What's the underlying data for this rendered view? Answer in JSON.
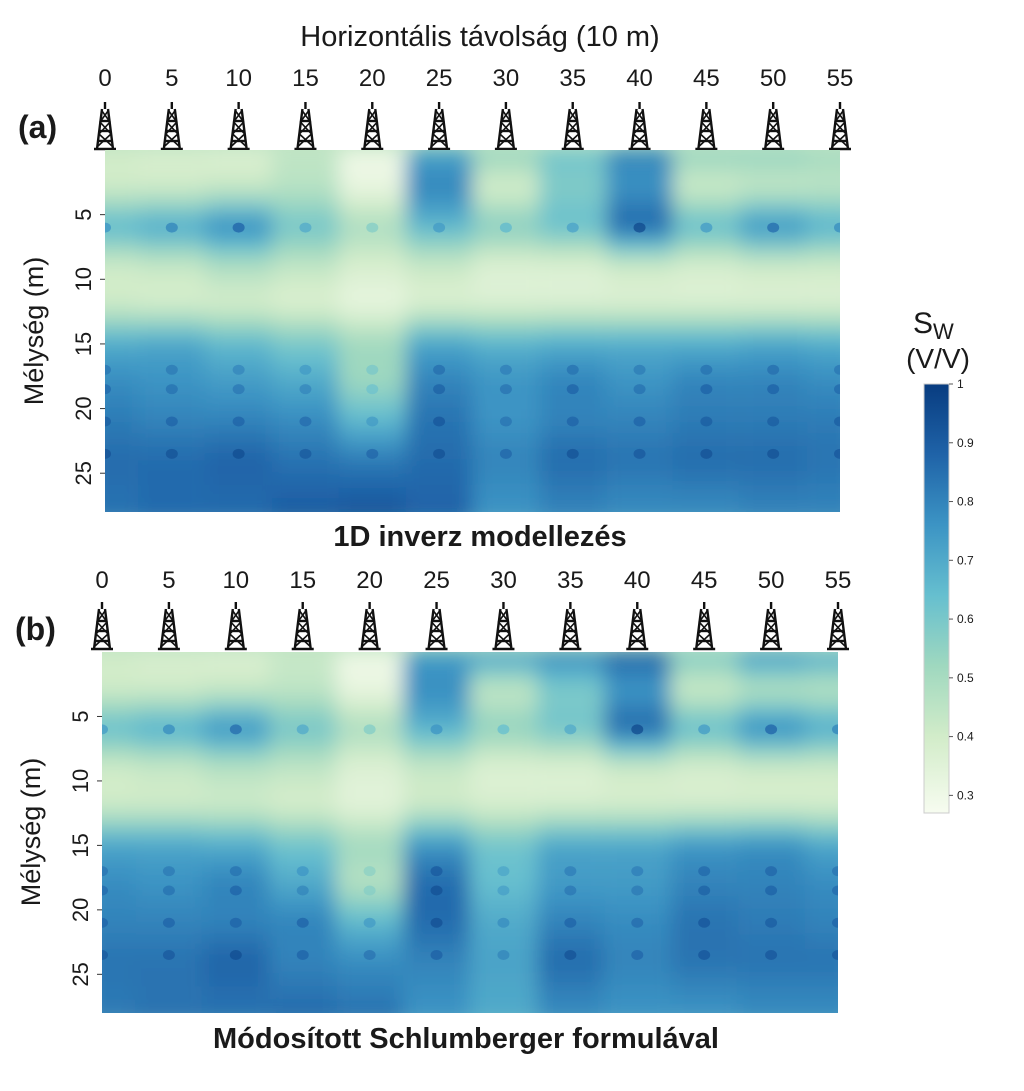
{
  "chart_data": {
    "type": "heatmap",
    "xlabel": "Horizontális távolság (10 m)",
    "ylabel": "Mélység (m)",
    "x_ticks": [
      0,
      5,
      10,
      15,
      20,
      25,
      30,
      35,
      40,
      45,
      50,
      55
    ],
    "y_ticks": [
      5,
      10,
      15,
      20,
      25
    ],
    "xlim": [
      0,
      55
    ],
    "ylim": [
      0,
      28
    ],
    "well_positions": [
      0,
      5,
      10,
      15,
      20,
      25,
      30,
      35,
      40,
      45,
      50,
      55
    ],
    "colorbar": {
      "title_main": "S",
      "title_sub": "W",
      "unit": "(V/V)",
      "range": [
        0.27,
        1.0
      ],
      "ticks": [
        0.3,
        0.4,
        0.5,
        0.6,
        0.7,
        0.8,
        0.9,
        1.0
      ],
      "tick_labels": [
        "0.3",
        "0.4",
        "0.5",
        "0.6",
        "0.7",
        "0.8",
        "0.9",
        "1"
      ],
      "stops": [
        {
          "value": 0.27,
          "color": "#f7fcf0"
        },
        {
          "value": 0.4,
          "color": "#d2ecc9"
        },
        {
          "value": 0.52,
          "color": "#9fd8bf"
        },
        {
          "value": 0.64,
          "color": "#66bfcf"
        },
        {
          "value": 0.76,
          "color": "#3c94c4"
        },
        {
          "value": 0.88,
          "color": "#1f63a8"
        },
        {
          "value": 1.0,
          "color": "#083c80"
        }
      ]
    },
    "panels": [
      {
        "label": "(a)",
        "title": "1D inverz modellezés",
        "depth_profiles": [
          {
            "x": 0,
            "depth": [
              0,
              3,
              6,
              9,
              12,
              15,
              18,
              21,
              24,
              28
            ],
            "sw": [
              0.4,
              0.4,
              0.68,
              0.4,
              0.4,
              0.7,
              0.78,
              0.82,
              0.86,
              0.84
            ]
          },
          {
            "x": 5,
            "depth": [
              0,
              3,
              6,
              9,
              12,
              15,
              18,
              21,
              24,
              28
            ],
            "sw": [
              0.38,
              0.4,
              0.72,
              0.42,
              0.38,
              0.72,
              0.76,
              0.8,
              0.86,
              0.86
            ]
          },
          {
            "x": 10,
            "depth": [
              0,
              3,
              6,
              9,
              12,
              15,
              18,
              21,
              24,
              28
            ],
            "sw": [
              0.36,
              0.42,
              0.8,
              0.48,
              0.38,
              0.66,
              0.74,
              0.8,
              0.88,
              0.86
            ]
          },
          {
            "x": 15,
            "depth": [
              0,
              3,
              6,
              9,
              12,
              15,
              18,
              21,
              24,
              28
            ],
            "sw": [
              0.44,
              0.46,
              0.62,
              0.44,
              0.36,
              0.6,
              0.7,
              0.78,
              0.84,
              0.9
            ]
          },
          {
            "x": 20,
            "depth": [
              0,
              3,
              6,
              9,
              12,
              15,
              18,
              21,
              24,
              28
            ],
            "sw": [
              0.3,
              0.32,
              0.5,
              0.38,
              0.32,
              0.52,
              0.52,
              0.66,
              0.82,
              0.92
            ]
          },
          {
            "x": 25,
            "depth": [
              0,
              3,
              6,
              9,
              12,
              15,
              18,
              21,
              24,
              28
            ],
            "sw": [
              0.72,
              0.8,
              0.66,
              0.42,
              0.36,
              0.72,
              0.8,
              0.84,
              0.86,
              0.88
            ]
          },
          {
            "x": 30,
            "depth": [
              0,
              3,
              6,
              9,
              12,
              15,
              18,
              21,
              24,
              28
            ],
            "sw": [
              0.56,
              0.38,
              0.58,
              0.36,
              0.36,
              0.68,
              0.76,
              0.76,
              0.8,
              0.76
            ]
          },
          {
            "x": 35,
            "depth": [
              0,
              3,
              6,
              9,
              12,
              15,
              18,
              21,
              24,
              28
            ],
            "sw": [
              0.62,
              0.58,
              0.64,
              0.36,
              0.36,
              0.7,
              0.8,
              0.8,
              0.86,
              0.8
            ]
          },
          {
            "x": 40,
            "depth": [
              0,
              3,
              6,
              9,
              12,
              15,
              18,
              21,
              24,
              28
            ],
            "sw": [
              0.8,
              0.76,
              0.88,
              0.4,
              0.36,
              0.7,
              0.76,
              0.8,
              0.84,
              0.78
            ]
          },
          {
            "x": 45,
            "depth": [
              0,
              3,
              6,
              9,
              12,
              15,
              18,
              21,
              24,
              28
            ],
            "sw": [
              0.56,
              0.4,
              0.66,
              0.38,
              0.36,
              0.7,
              0.8,
              0.82,
              0.86,
              0.78
            ]
          },
          {
            "x": 50,
            "depth": [
              0,
              3,
              6,
              9,
              12,
              15,
              18,
              21,
              24,
              28
            ],
            "sw": [
              0.56,
              0.42,
              0.78,
              0.4,
              0.36,
              0.72,
              0.8,
              0.82,
              0.86,
              0.8
            ]
          },
          {
            "x": 55,
            "depth": [
              0,
              3,
              6,
              9,
              12,
              15,
              18,
              21,
              24,
              28
            ],
            "sw": [
              0.52,
              0.44,
              0.7,
              0.4,
              0.36,
              0.7,
              0.78,
              0.82,
              0.84,
              0.8
            ]
          }
        ]
      },
      {
        "label": "(b)",
        "title": "Módosított  Schlumberger formulával",
        "depth_profiles": [
          {
            "x": 0,
            "depth": [
              0,
              3,
              6,
              9,
              12,
              15,
              18,
              21,
              24,
              28
            ],
            "sw": [
              0.4,
              0.4,
              0.66,
              0.4,
              0.4,
              0.72,
              0.78,
              0.8,
              0.84,
              0.82
            ]
          },
          {
            "x": 5,
            "depth": [
              0,
              3,
              6,
              9,
              12,
              15,
              18,
              21,
              24,
              28
            ],
            "sw": [
              0.38,
              0.4,
              0.7,
              0.42,
              0.4,
              0.72,
              0.76,
              0.8,
              0.84,
              0.84
            ]
          },
          {
            "x": 10,
            "depth": [
              0,
              3,
              6,
              9,
              12,
              15,
              18,
              21,
              24,
              28
            ],
            "sw": [
              0.36,
              0.42,
              0.78,
              0.46,
              0.4,
              0.7,
              0.8,
              0.8,
              0.88,
              0.84
            ]
          },
          {
            "x": 15,
            "depth": [
              0,
              3,
              6,
              9,
              12,
              15,
              18,
              21,
              24,
              28
            ],
            "sw": [
              0.42,
              0.44,
              0.62,
              0.44,
              0.38,
              0.62,
              0.7,
              0.8,
              0.8,
              0.86
            ]
          },
          {
            "x": 20,
            "depth": [
              0,
              3,
              6,
              9,
              12,
              15,
              18,
              21,
              24,
              28
            ],
            "sw": [
              0.3,
              0.32,
              0.5,
              0.36,
              0.34,
              0.52,
              0.46,
              0.66,
              0.78,
              0.84
            ]
          },
          {
            "x": 25,
            "depth": [
              0,
              3,
              6,
              9,
              12,
              15,
              18,
              21,
              24,
              28
            ],
            "sw": [
              0.74,
              0.78,
              0.68,
              0.42,
              0.4,
              0.76,
              0.86,
              0.86,
              0.8,
              0.76
            ]
          },
          {
            "x": 30,
            "depth": [
              0,
              3,
              6,
              9,
              12,
              15,
              18,
              21,
              24,
              28
            ],
            "sw": [
              0.78,
              0.42,
              0.56,
              0.36,
              0.38,
              0.62,
              0.64,
              0.7,
              0.72,
              0.7
            ]
          },
          {
            "x": 35,
            "depth": [
              0,
              3,
              6,
              9,
              12,
              15,
              18,
              21,
              24,
              28
            ],
            "sw": [
              0.82,
              0.58,
              0.62,
              0.36,
              0.38,
              0.72,
              0.74,
              0.8,
              0.86,
              0.78
            ]
          },
          {
            "x": 40,
            "depth": [
              0,
              3,
              6,
              9,
              12,
              15,
              18,
              21,
              24,
              28
            ],
            "sw": [
              0.9,
              0.74,
              0.88,
              0.4,
              0.38,
              0.72,
              0.74,
              0.78,
              0.8,
              0.76
            ]
          },
          {
            "x": 45,
            "depth": [
              0,
              3,
              6,
              9,
              12,
              15,
              18,
              21,
              24,
              28
            ],
            "sw": [
              0.62,
              0.4,
              0.66,
              0.38,
              0.38,
              0.76,
              0.8,
              0.84,
              0.84,
              0.76
            ]
          },
          {
            "x": 50,
            "depth": [
              0,
              3,
              6,
              9,
              12,
              15,
              18,
              21,
              24,
              28
            ],
            "sw": [
              0.8,
              0.44,
              0.8,
              0.4,
              0.38,
              0.78,
              0.8,
              0.82,
              0.84,
              0.78
            ]
          },
          {
            "x": 55,
            "depth": [
              0,
              3,
              6,
              9,
              12,
              15,
              18,
              21,
              24,
              28
            ],
            "sw": [
              0.74,
              0.44,
              0.72,
              0.4,
              0.38,
              0.72,
              0.78,
              0.8,
              0.84,
              0.78
            ]
          }
        ]
      }
    ]
  }
}
